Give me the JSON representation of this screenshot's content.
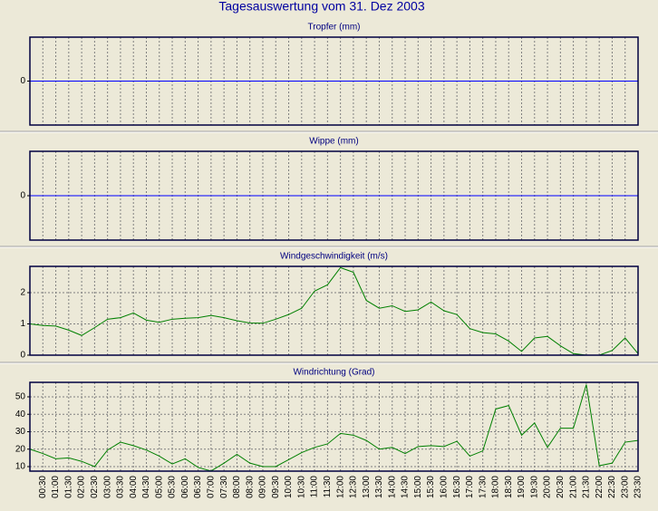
{
  "title": "Tagesauswertung vom 31. Dez 2003",
  "chart_data": [
    {
      "type": "line",
      "title": "Tropfer (mm)",
      "ylim": [
        -1,
        1
      ],
      "yticks": [
        0
      ],
      "grid": true,
      "series": [
        {
          "color": "#0000ff",
          "values": [
            0,
            0,
            0,
            0,
            0,
            0,
            0,
            0,
            0,
            0,
            0,
            0,
            0,
            0,
            0,
            0,
            0,
            0,
            0,
            0,
            0,
            0,
            0,
            0,
            0,
            0,
            0,
            0,
            0,
            0,
            0,
            0,
            0,
            0,
            0,
            0,
            0,
            0,
            0,
            0,
            0,
            0,
            0,
            0,
            0,
            0,
            0,
            0
          ]
        }
      ]
    },
    {
      "type": "line",
      "title": "Wippe (mm)",
      "ylim": [
        -1,
        1
      ],
      "yticks": [
        0
      ],
      "grid": true,
      "series": [
        {
          "color": "#0000ff",
          "values": [
            0,
            0,
            0,
            0,
            0,
            0,
            0,
            0,
            0,
            0,
            0,
            0,
            0,
            0,
            0,
            0,
            0,
            0,
            0,
            0,
            0,
            0,
            0,
            0,
            0,
            0,
            0,
            0,
            0,
            0,
            0,
            0,
            0,
            0,
            0,
            0,
            0,
            0,
            0,
            0,
            0,
            0,
            0,
            0,
            0,
            0,
            0,
            0
          ]
        }
      ]
    },
    {
      "type": "line",
      "title": "Windgeschwindigkeit (m/s)",
      "ylim": [
        0,
        2.84
      ],
      "yticks": [
        0,
        1,
        2
      ],
      "grid": true,
      "series": [
        {
          "color": "#008000",
          "values": [
            1.0,
            0.95,
            0.93,
            0.8,
            0.63,
            0.88,
            1.15,
            1.2,
            1.35,
            1.12,
            1.05,
            1.15,
            1.18,
            1.2,
            1.27,
            1.2,
            1.1,
            1.03,
            1.02,
            1.15,
            1.3,
            1.5,
            2.05,
            2.25,
            2.8,
            2.65,
            1.75,
            1.5,
            1.58,
            1.4,
            1.45,
            1.7,
            1.42,
            1.3,
            0.85,
            0.72,
            0.68,
            0.45,
            0.12,
            0.55,
            0.6,
            0.3,
            0.05,
            0,
            0,
            0.15,
            0.55,
            0.05
          ]
        }
      ]
    },
    {
      "type": "line",
      "title": "Windrichtung (Grad)",
      "ylim": [
        7.4,
        58.3
      ],
      "yticks": [
        10,
        20,
        30,
        40,
        50
      ],
      "grid": true,
      "categories": [
        null,
        "00:30",
        "01:00",
        "01:30",
        "02:00",
        "02:30",
        "03:00",
        "03:30",
        "04:00",
        "04:30",
        "05:00",
        "05:30",
        "06:00",
        "06:30",
        "07:00",
        "07:30",
        "08:00",
        "08:30",
        "09:00",
        "09:30",
        "10:00",
        "10:30",
        "11:00",
        "11:30",
        "12:00",
        "12:30",
        "13:00",
        "13:30",
        "14:00",
        "14:30",
        "15:00",
        "15:30",
        "16:00",
        "16:30",
        "17:00",
        "17:30",
        "18:00",
        "18:30",
        "19:00",
        "19:30",
        "20:00",
        "20:30",
        "21:00",
        "21:30",
        "22:00",
        "22:30",
        "23:00",
        "23:30"
      ],
      "series": [
        {
          "color": "#008000",
          "values": [
            20,
            17.5,
            14.5,
            15,
            13,
            10,
            19.5,
            24,
            22,
            19.5,
            16,
            11.5,
            14.5,
            9.5,
            7.5,
            12,
            17,
            12,
            10,
            10,
            14,
            18,
            21,
            23,
            29,
            28,
            25,
            20,
            21,
            17.5,
            21.5,
            22,
            21.5,
            24.5,
            16,
            19,
            43,
            45,
            28,
            35,
            21,
            32,
            32,
            57,
            10.5,
            12,
            24,
            25
          ]
        }
      ]
    }
  ]
}
